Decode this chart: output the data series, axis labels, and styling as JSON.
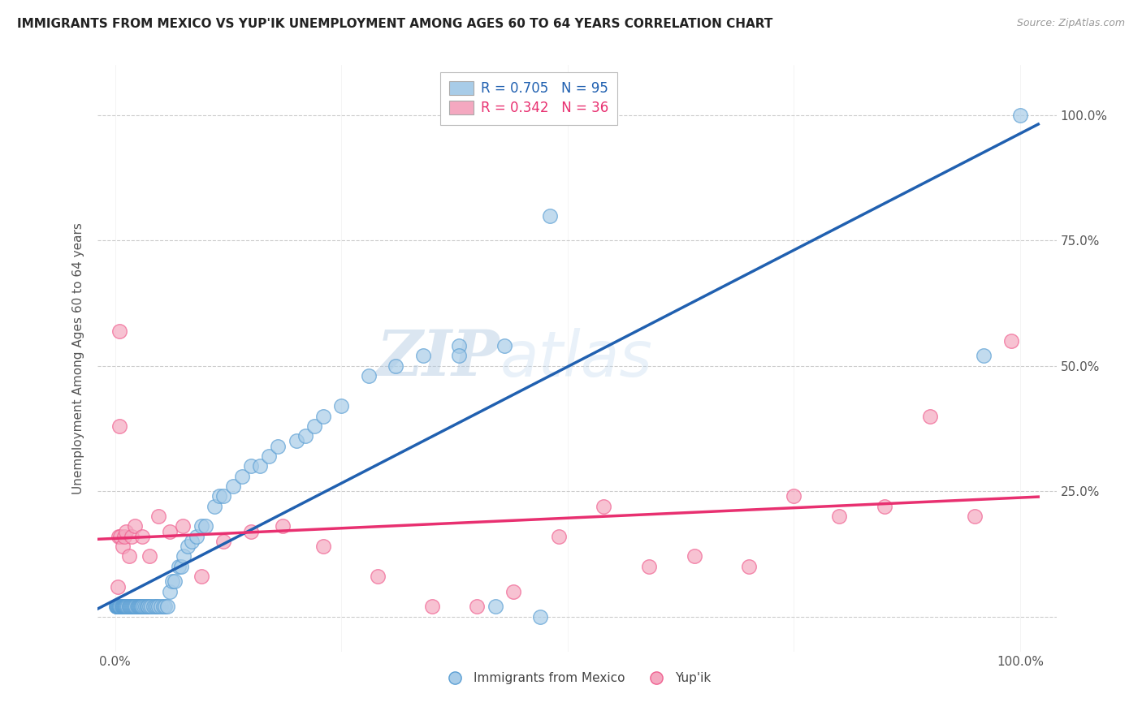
{
  "title": "IMMIGRANTS FROM MEXICO VS YUP'IK UNEMPLOYMENT AMONG AGES 60 TO 64 YEARS CORRELATION CHART",
  "source": "Source: ZipAtlas.com",
  "ylabel": "Unemployment Among Ages 60 to 64 years",
  "blue_R": 0.705,
  "blue_N": 95,
  "pink_R": 0.342,
  "pink_N": 36,
  "blue_color": "#a8cce8",
  "pink_color": "#f4a8c0",
  "blue_edge_color": "#5b9fd4",
  "pink_edge_color": "#f06090",
  "blue_line_color": "#2060b0",
  "pink_line_color": "#e83070",
  "legend_label_blue": "Immigrants from Mexico",
  "legend_label_pink": "Yup'ik",
  "watermark_zip": "ZIP",
  "watermark_atlas": "atlas",
  "blue_scatter_x": [
    0.001,
    0.001,
    0.002,
    0.002,
    0.003,
    0.003,
    0.003,
    0.004,
    0.004,
    0.005,
    0.005,
    0.005,
    0.006,
    0.006,
    0.007,
    0.007,
    0.008,
    0.008,
    0.009,
    0.009,
    0.01,
    0.01,
    0.011,
    0.011,
    0.012,
    0.012,
    0.013,
    0.014,
    0.015,
    0.015,
    0.016,
    0.017,
    0.018,
    0.019,
    0.02,
    0.021,
    0.022,
    0.023,
    0.024,
    0.025,
    0.026,
    0.027,
    0.028,
    0.029,
    0.03,
    0.032,
    0.033,
    0.035,
    0.036,
    0.038,
    0.04,
    0.042,
    0.044,
    0.046,
    0.048,
    0.05,
    0.053,
    0.055,
    0.058,
    0.06,
    0.063,
    0.066,
    0.07,
    0.073,
    0.076,
    0.08,
    0.085,
    0.09,
    0.095,
    0.1,
    0.11,
    0.115,
    0.12,
    0.13,
    0.14,
    0.15,
    0.16,
    0.17,
    0.18,
    0.2,
    0.21,
    0.22,
    0.23,
    0.25,
    0.28,
    0.31,
    0.34,
    0.38,
    0.42,
    0.47,
    0.38,
    0.43,
    0.48,
    0.96,
    1.0
  ],
  "blue_scatter_y": [
    0.02,
    0.02,
    0.02,
    0.02,
    0.02,
    0.02,
    0.02,
    0.02,
    0.02,
    0.02,
    0.02,
    0.02,
    0.02,
    0.02,
    0.02,
    0.02,
    0.02,
    0.02,
    0.02,
    0.02,
    0.02,
    0.02,
    0.02,
    0.02,
    0.02,
    0.02,
    0.02,
    0.02,
    0.02,
    0.02,
    0.02,
    0.02,
    0.02,
    0.02,
    0.02,
    0.02,
    0.02,
    0.02,
    0.02,
    0.02,
    0.02,
    0.02,
    0.02,
    0.02,
    0.02,
    0.02,
    0.02,
    0.02,
    0.02,
    0.02,
    0.02,
    0.02,
    0.02,
    0.02,
    0.02,
    0.02,
    0.02,
    0.02,
    0.02,
    0.05,
    0.07,
    0.07,
    0.1,
    0.1,
    0.12,
    0.14,
    0.15,
    0.16,
    0.18,
    0.18,
    0.22,
    0.24,
    0.24,
    0.26,
    0.28,
    0.3,
    0.3,
    0.32,
    0.34,
    0.35,
    0.36,
    0.38,
    0.4,
    0.42,
    0.48,
    0.5,
    0.52,
    0.54,
    0.02,
    0.0,
    0.52,
    0.54,
    0.8,
    0.52,
    1.0
  ],
  "pink_scatter_x": [
    0.003,
    0.004,
    0.005,
    0.005,
    0.006,
    0.008,
    0.01,
    0.012,
    0.015,
    0.018,
    0.022,
    0.03,
    0.038,
    0.048,
    0.06,
    0.075,
    0.095,
    0.12,
    0.15,
    0.185,
    0.23,
    0.29,
    0.35,
    0.4,
    0.44,
    0.49,
    0.54,
    0.59,
    0.64,
    0.7,
    0.75,
    0.8,
    0.85,
    0.9,
    0.95,
    0.99
  ],
  "pink_scatter_y": [
    0.06,
    0.16,
    0.57,
    0.38,
    0.16,
    0.14,
    0.16,
    0.17,
    0.12,
    0.16,
    0.18,
    0.16,
    0.12,
    0.2,
    0.17,
    0.18,
    0.08,
    0.15,
    0.17,
    0.18,
    0.14,
    0.08,
    0.02,
    0.02,
    0.05,
    0.16,
    0.22,
    0.1,
    0.12,
    0.1,
    0.24,
    0.2,
    0.22,
    0.4,
    0.2,
    0.55
  ]
}
